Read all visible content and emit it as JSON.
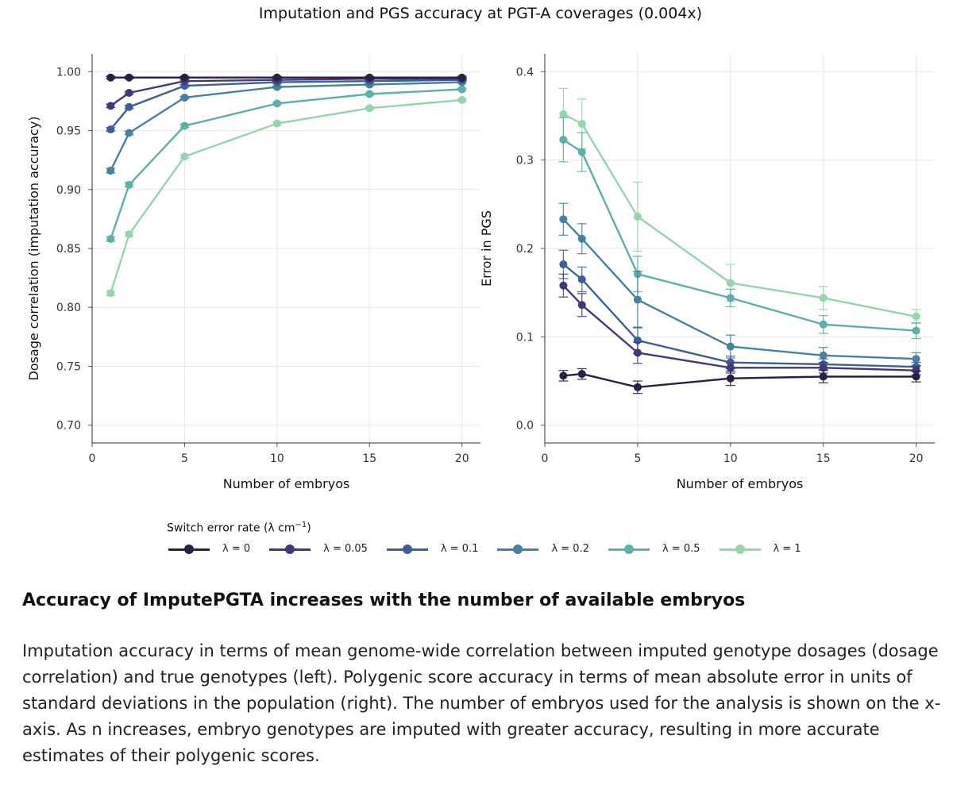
{
  "title": "Imputation and PGS accuracy at PGT-A coverages (0.004x)",
  "legend": {
    "title": "Switch error rate (λ cm",
    "title_sup": "−1",
    "title_end": ")"
  },
  "caption": {
    "heading": "Accuracy of ImputePGTA increases with the number of available embryos",
    "text": "Imputation accuracy in terms of mean genome-wide correlation between imputed genotype dosages (dosage correlation) and true genotypes (left). Polygenic score accuracy in terms of mean absolute error in units of standard deviations in the population (right). The number of embryos used for the analysis is shown on the x-axis. As n increases, embryo genotypes are imputed with greater accuracy, resulting in more accurate estimates of their polygenic scores."
  },
  "chart_data": [
    {
      "type": "line",
      "xlabel": "Number of embryos",
      "ylabel": "Dosage correlation (imputation accuracy)",
      "x": [
        1,
        2,
        5,
        10,
        15,
        20
      ],
      "xticks": [
        0,
        5,
        10,
        15,
        20
      ],
      "xlim": [
        0,
        21
      ],
      "ylim": [
        0.685,
        1.015
      ],
      "yticks": [
        0.7,
        0.75,
        0.8,
        0.85,
        0.9,
        0.95,
        1.0
      ],
      "ytick_labels": [
        "0.70",
        "0.75",
        "0.80",
        "0.85",
        "0.90",
        "0.95",
        "1.00"
      ],
      "grid": true,
      "series": [
        {
          "name": "λ = 0",
          "color": "#2a1f45",
          "values": [
            0.995,
            0.995,
            0.995,
            0.995,
            0.995,
            0.995
          ],
          "err": [
            0.001,
            0.001,
            0.001,
            0.001,
            0.001,
            0.001
          ]
        },
        {
          "name": "λ = 0.05",
          "color": "#3f3a7a",
          "values": [
            0.971,
            0.982,
            0.992,
            0.993,
            0.994,
            0.994
          ],
          "err": [
            0.0015,
            0.001,
            0.001,
            0.001,
            0.001,
            0.001
          ]
        },
        {
          "name": "λ = 0.1",
          "color": "#3c5f96",
          "values": [
            0.951,
            0.97,
            0.988,
            0.991,
            0.992,
            0.993
          ],
          "err": [
            0.0015,
            0.0015,
            0.001,
            0.001,
            0.001,
            0.001
          ]
        },
        {
          "name": "λ = 0.2",
          "color": "#45829f",
          "values": [
            0.916,
            0.948,
            0.978,
            0.987,
            0.989,
            0.991
          ],
          "err": [
            0.002,
            0.0015,
            0.001,
            0.001,
            0.001,
            0.001
          ]
        },
        {
          "name": "λ = 0.5",
          "color": "#5eaeaa",
          "values": [
            0.858,
            0.904,
            0.954,
            0.973,
            0.981,
            0.985
          ],
          "err": [
            0.002,
            0.002,
            0.0015,
            0.001,
            0.001,
            0.001
          ]
        },
        {
          "name": "λ = 1",
          "color": "#96d4ad",
          "values": [
            0.812,
            0.862,
            0.928,
            0.956,
            0.969,
            0.976
          ],
          "err": [
            0.002,
            0.002,
            0.0015,
            0.0015,
            0.001,
            0.001
          ]
        }
      ]
    },
    {
      "type": "line",
      "xlabel": "Number of embryos",
      "ylabel": "Error in PGS",
      "x": [
        1,
        2,
        5,
        10,
        15,
        20
      ],
      "xticks": [
        0,
        5,
        10,
        15,
        20
      ],
      "xlim": [
        0,
        21
      ],
      "ylim": [
        -0.02,
        0.42
      ],
      "yticks": [
        0.0,
        0.1,
        0.2,
        0.3,
        0.4
      ],
      "ytick_labels": [
        "0.0",
        "0.1",
        "0.2",
        "0.3",
        "0.4"
      ],
      "grid": true,
      "series": [
        {
          "name": "λ = 0",
          "color": "#2a1f45",
          "values": [
            0.056,
            0.058,
            0.043,
            0.053,
            0.055,
            0.055
          ],
          "err": [
            0.006,
            0.006,
            0.007,
            0.008,
            0.007,
            0.006
          ]
        },
        {
          "name": "λ = 0.05",
          "color": "#3f3a7a",
          "values": [
            0.158,
            0.136,
            0.082,
            0.065,
            0.065,
            0.062
          ],
          "err": [
            0.013,
            0.013,
            0.012,
            0.006,
            0.006,
            0.005
          ]
        },
        {
          "name": "λ = 0.1",
          "color": "#3c5f96",
          "values": [
            0.182,
            0.165,
            0.096,
            0.071,
            0.069,
            0.066
          ],
          "err": [
            0.016,
            0.014,
            0.015,
            0.007,
            0.006,
            0.005
          ]
        },
        {
          "name": "λ = 0.2",
          "color": "#45829f",
          "values": [
            0.233,
            0.211,
            0.142,
            0.089,
            0.079,
            0.075
          ],
          "err": [
            0.018,
            0.017,
            0.032,
            0.013,
            0.009,
            0.007
          ]
        },
        {
          "name": "λ = 0.5",
          "color": "#5eaeaa",
          "values": [
            0.323,
            0.309,
            0.171,
            0.144,
            0.114,
            0.107
          ],
          "err": [
            0.025,
            0.022,
            0.02,
            0.01,
            0.01,
            0.009
          ]
        },
        {
          "name": "λ = 1",
          "color": "#96d4ad",
          "values": [
            0.352,
            0.341,
            0.236,
            0.161,
            0.144,
            0.123
          ],
          "err": [
            0.029,
            0.028,
            0.039,
            0.021,
            0.013,
            0.008
          ]
        }
      ]
    }
  ]
}
